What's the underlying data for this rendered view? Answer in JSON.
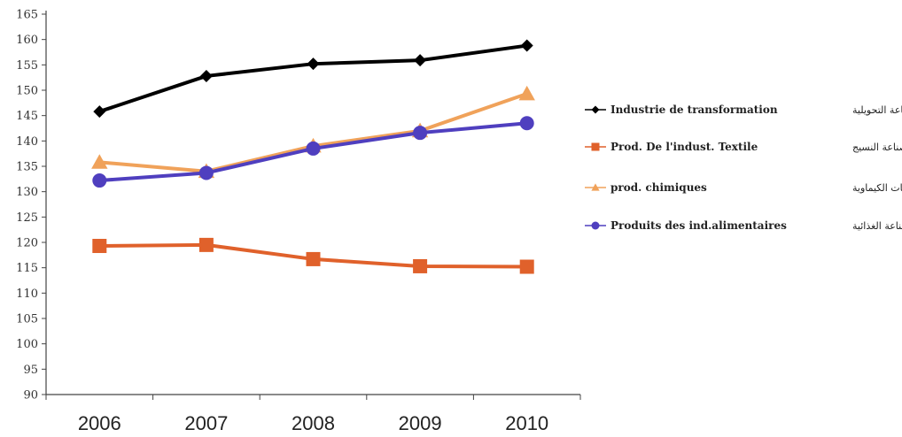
{
  "chart_data": {
    "type": "line",
    "categories": [
      "2006",
      "2007",
      "2008",
      "2009",
      "2010"
    ],
    "yticks": [
      "90",
      "95",
      "100",
      "105",
      "110",
      "115",
      "120",
      "125",
      "130",
      "135",
      "140",
      "145",
      "150",
      "155",
      "160",
      "165"
    ],
    "ylim": [
      90,
      165
    ],
    "grid": false,
    "legend_position": "right",
    "series": [
      {
        "name": "Industrie de transformation",
        "name_ar": "الصناعة التحويلية",
        "values": [
          145.8,
          152.8,
          155.2,
          155.9,
          158.8
        ],
        "color": "#000000",
        "marker": "diamond"
      },
      {
        "name": "Prod. De l'indust. Textile",
        "name_ar": "صناعة النسيج",
        "values": [
          119.3,
          119.5,
          116.7,
          115.3,
          115.2
        ],
        "color": "#e0612b",
        "marker": "square"
      },
      {
        "name": "prod. chimiques",
        "name_ar": "المنتوجات الكيماوية",
        "values": [
          135.8,
          134.0,
          139.0,
          142.0,
          149.3
        ],
        "color": "#f0a25a",
        "marker": "triangle"
      },
      {
        "name": "Produits des ind.alimentaires",
        "name_ar": "منتوجات الصناعة الغذائية",
        "values": [
          132.2,
          133.7,
          138.5,
          141.6,
          143.5
        ],
        "color": "#4f3fbf",
        "marker": "circle"
      }
    ]
  }
}
